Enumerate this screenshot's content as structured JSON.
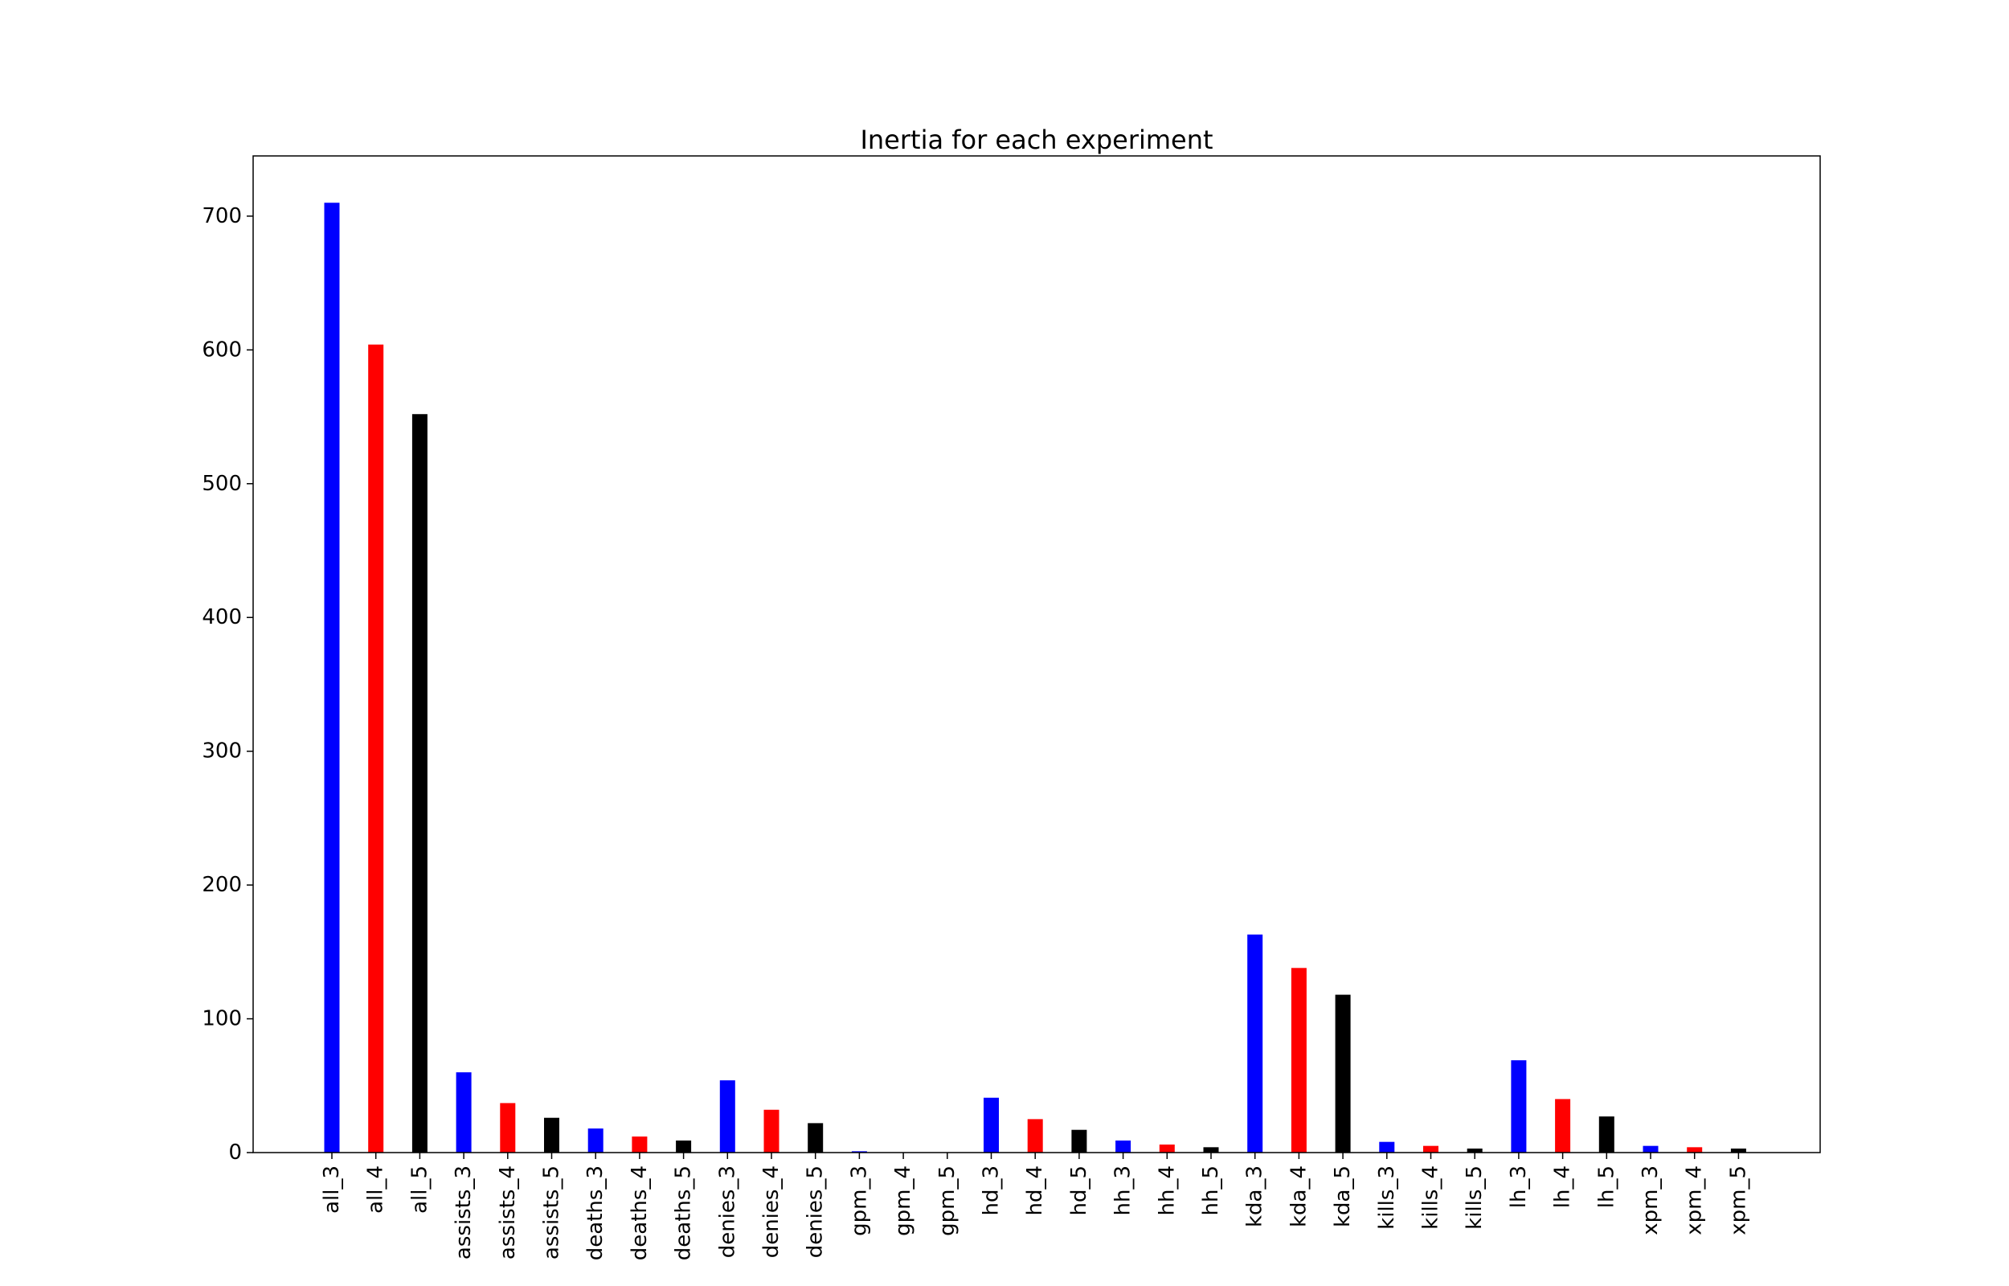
{
  "chart_data": {
    "type": "bar",
    "title": "Inertia for each experiment",
    "xlabel": "",
    "ylabel": "",
    "ylim": [
      0,
      745
    ],
    "yticks": [
      0,
      100,
      200,
      300,
      400,
      500,
      600,
      700
    ],
    "grid": false,
    "legend": "none",
    "categories": [
      "all_3",
      "all_4",
      "all_5",
      "assists_3",
      "assists_4",
      "assists_5",
      "deaths_3",
      "deaths_4",
      "deaths_5",
      "denies_3",
      "denies_4",
      "denies_5",
      "gpm_3",
      "gpm_4",
      "gpm_5",
      "hd_3",
      "hd_4",
      "hd_5",
      "hh_3",
      "hh_4",
      "hh_5",
      "kda_3",
      "kda_4",
      "kda_5",
      "kills_3",
      "kills_4",
      "kills_5",
      "lh_3",
      "lh_4",
      "lh_5",
      "xpm_3",
      "xpm_4",
      "xpm_5"
    ],
    "values": [
      710,
      604,
      552,
      60,
      37,
      26,
      18,
      12,
      9,
      54,
      32,
      22,
      1,
      0,
      0,
      41,
      25,
      17,
      9,
      6,
      4,
      163,
      138,
      118,
      8,
      5,
      3,
      69,
      40,
      27,
      5,
      4,
      3
    ],
    "bar_colors": [
      "#0000ff",
      "#ff0000",
      "#000000"
    ]
  }
}
